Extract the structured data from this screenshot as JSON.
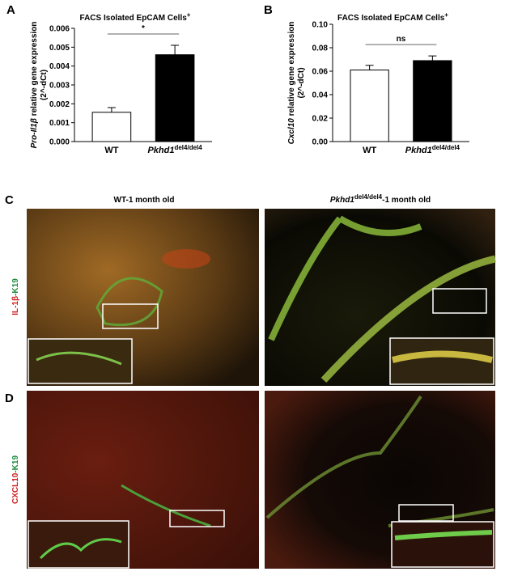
{
  "chart_data": [
    {
      "type": "bar",
      "panel": "A",
      "title": {
        "text": "FACS Isolated EpCAM Cells",
        "sup": "+"
      },
      "ylabel": [
        {
          "italic": "Pro-Il1β",
          "text": " relative gene expression"
        },
        "(2^-dCt)"
      ],
      "categories": [
        "WT",
        {
          "italic": "Pkhd1",
          "sup": "del4/del4"
        }
      ],
      "values": [
        0.00155,
        0.0046
      ],
      "errors": [
        0.00025,
        0.0005
      ],
      "colors": [
        "#ffffff",
        "#000000"
      ],
      "ylim": [
        0,
        0.006
      ],
      "yticks": [
        {
          "value": 0,
          "label": "0.000"
        },
        {
          "value": 0.001,
          "label": "0.001"
        },
        {
          "value": 0.002,
          "label": "0.002"
        },
        {
          "value": 0.003,
          "label": "0.003"
        },
        {
          "value": 0.004,
          "label": "0.004"
        },
        {
          "value": 0.005,
          "label": "0.005"
        },
        {
          "value": 0.006,
          "label": "0.006"
        }
      ],
      "significance": "*"
    },
    {
      "type": "bar",
      "panel": "B",
      "title": {
        "text": "FACS Isolated EpCAM Cells",
        "sup": "+"
      },
      "ylabel": [
        {
          "italic": "Cxcl10",
          "text": " relative gene expression"
        },
        "(2^-dCt)"
      ],
      "categories": [
        "WT",
        {
          "italic": "Pkhd1",
          "sup": "del4/del4"
        }
      ],
      "values": [
        0.061,
        0.069
      ],
      "errors": [
        0.004,
        0.004
      ],
      "colors": [
        "#ffffff",
        "#000000"
      ],
      "ylim": [
        0,
        0.1
      ],
      "yticks": [
        {
          "value": 0,
          "label": "0.00"
        },
        {
          "value": 0.02,
          "label": "0.02"
        },
        {
          "value": 0.04,
          "label": "0.04"
        },
        {
          "value": 0.06,
          "label": "0.06"
        },
        {
          "value": 0.08,
          "label": "0.08"
        },
        {
          "value": 0.1,
          "label": "0.10"
        }
      ],
      "significance": "ns"
    }
  ],
  "images": {
    "panel_c": "C",
    "panel_d": "D",
    "columns": [
      "WT-1 month old",
      {
        "italic": "Pkhd1",
        "sup": "del4/del4",
        "text": "-1 month old"
      }
    ],
    "rows": [
      {
        "red": "IL-1β",
        "green": "-K19"
      },
      {
        "red": "CXCL10",
        "green": "-K19"
      }
    ]
  }
}
